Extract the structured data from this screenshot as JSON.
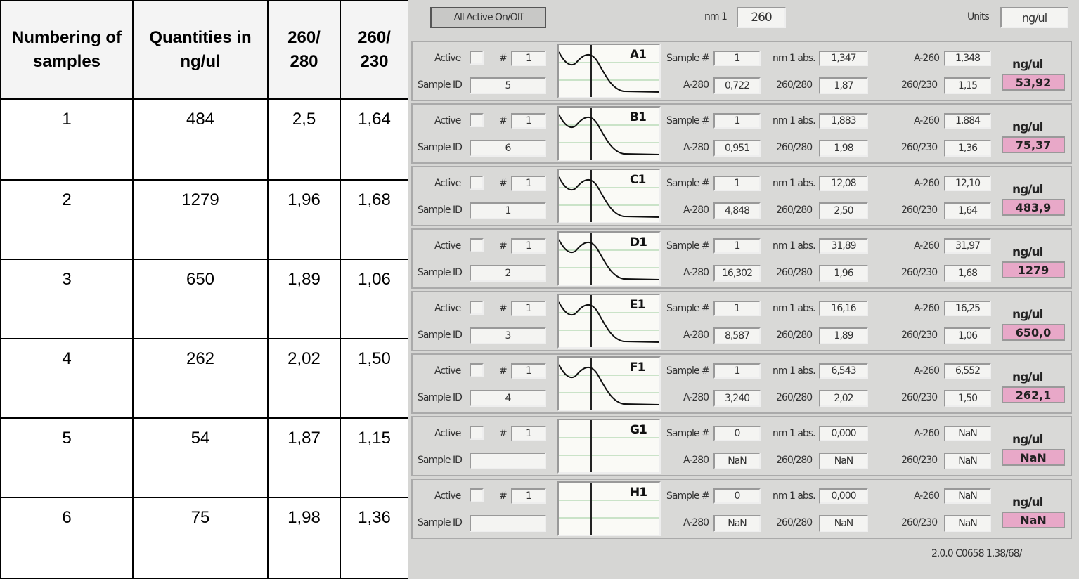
{
  "table": {
    "headers": [
      "Numbering of samples",
      "Quantities in ng/ul",
      "260/ 280",
      "260/ 230"
    ],
    "rows": [
      [
        "1",
        "484",
        "2,5",
        "1,64"
      ],
      [
        "2",
        "1279",
        "1,96",
        "1,68"
      ],
      [
        "3",
        "650",
        "1,89",
        "1,06"
      ],
      [
        "4",
        "262",
        "2,02",
        "1,50"
      ],
      [
        "5",
        "54",
        "1,87",
        "1,15"
      ],
      [
        "6",
        "75",
        "1,98",
        "1,36"
      ]
    ]
  },
  "panel": {
    "button": "All Active On/Off",
    "nm_label": "nm 1",
    "nm_value": "260",
    "units_label": "Units",
    "units_value": "ng/ul",
    "labels": {
      "active": "Active",
      "hash": "#",
      "sample_id": "Sample ID",
      "sample_num": "Sample #",
      "nm1abs": "nm 1 abs.",
      "a260": "A-260",
      "a280": "A-280",
      "r1": "260/280",
      "r2": "260/230",
      "unit": "ng/ul"
    },
    "wells": [
      {
        "well": "A1",
        "num": "1",
        "sample_id": "5",
        "sample_num": "1",
        "nm1abs": "1,347",
        "a260": "1,348",
        "a280": "0,722",
        "r1": "1,87",
        "r2": "1,15",
        "conc": "53,92"
      },
      {
        "well": "B1",
        "num": "1",
        "sample_id": "6",
        "sample_num": "1",
        "nm1abs": "1,883",
        "a260": "1,884",
        "a280": "0,951",
        "r1": "1,98",
        "r2": "1,36",
        "conc": "75,37"
      },
      {
        "well": "C1",
        "num": "1",
        "sample_id": "1",
        "sample_num": "1",
        "nm1abs": "12,08",
        "a260": "12,10",
        "a280": "4,848",
        "r1": "2,50",
        "r2": "1,64",
        "conc": "483,9"
      },
      {
        "well": "D1",
        "num": "1",
        "sample_id": "2",
        "sample_num": "1",
        "nm1abs": "31,89",
        "a260": "31,97",
        "a280": "16,302",
        "r1": "1,96",
        "r2": "1,68",
        "conc": "1279"
      },
      {
        "well": "E1",
        "num": "1",
        "sample_id": "3",
        "sample_num": "1",
        "nm1abs": "16,16",
        "a260": "16,25",
        "a280": "8,587",
        "r1": "1,89",
        "r2": "1,06",
        "conc": "650,0"
      },
      {
        "well": "F1",
        "num": "1",
        "sample_id": "4",
        "sample_num": "1",
        "nm1abs": "6,543",
        "a260": "6,552",
        "a280": "3,240",
        "r1": "2,02",
        "r2": "1,50",
        "conc": "262,1"
      },
      {
        "well": "G1",
        "num": "1",
        "sample_id": null,
        "sample_num": "0",
        "nm1abs": "0,000",
        "a260": "NaN",
        "a280": "NaN",
        "r1": "NaN",
        "r2": "NaN",
        "conc": "NaN"
      },
      {
        "well": "H1",
        "num": "1",
        "sample_id": null,
        "sample_num": "0",
        "nm1abs": "0,000",
        "a260": "NaN",
        "a280": "NaN",
        "r1": "NaN",
        "r2": "NaN",
        "conc": "NaN"
      }
    ],
    "footer": "2.0.0 C0658 1.38/68/"
  }
}
